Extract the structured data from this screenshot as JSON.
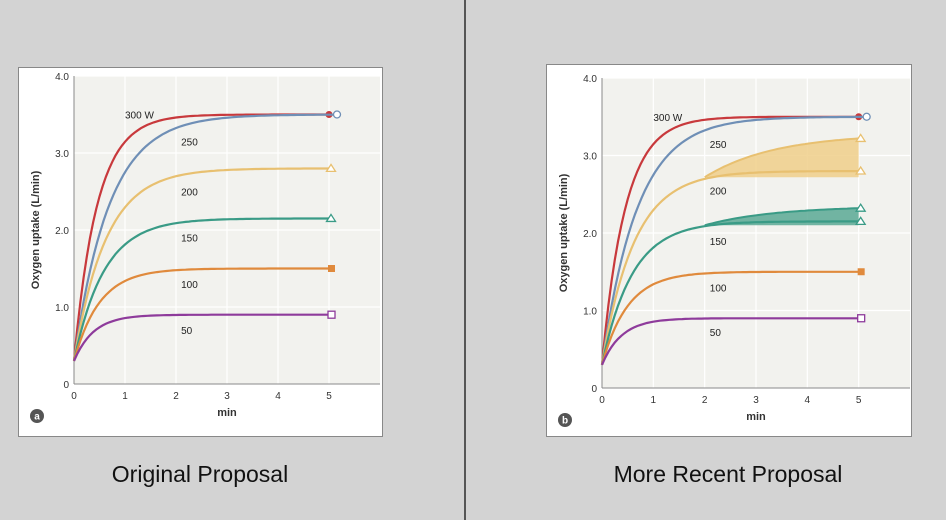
{
  "colors": {
    "background": "#d3d3d3",
    "plot_bg": "#f2f2ee",
    "grid": "#ffffff",
    "red": "#c8393c",
    "blue": "#6f8fb6",
    "yellow": "#e8c070",
    "teal": "#3a9b86",
    "orange": "#e08a3c",
    "purple": "#8e3b9b",
    "fill_yellow": "#f0cf8a",
    "fill_teal": "#5aa994"
  },
  "captions": {
    "left": "Original Proposal",
    "right": "More Recent Proposal"
  },
  "chart_data": [
    {
      "type": "line",
      "panel_badge": "a",
      "title": "",
      "xlabel": "min",
      "ylabel": "Oxygen uptake (L/min)",
      "xlim": [
        0,
        6
      ],
      "ylim": [
        0,
        4
      ],
      "x_ticks": [
        "0",
        "1",
        "2",
        "3",
        "4",
        "5"
      ],
      "y_ticks": [
        "0",
        "1.0",
        "2.0",
        "3.0",
        "4.0"
      ],
      "y_tick_values": [
        0,
        1,
        2,
        3,
        4
      ],
      "series": [
        {
          "name": "300 W",
          "color_key": "red",
          "start": 0.3,
          "steady": 3.5,
          "rate": 2.2,
          "end_x": 5,
          "marker": "circle-filled",
          "label_x": 1.0,
          "label_y": 3.5
        },
        {
          "name": "250",
          "color_key": "blue",
          "start": 0.3,
          "steady": 3.5,
          "rate": 1.45,
          "end_x": 5.15,
          "marker": "circle-open",
          "label_x": 2.1,
          "label_y": 3.15
        },
        {
          "name": "200",
          "color_key": "yellow",
          "start": 0.3,
          "steady": 2.8,
          "rate": 1.6,
          "end_x": 5,
          "marker": "triangle-open",
          "label_x": 2.1,
          "label_y": 2.5
        },
        {
          "name": "150",
          "color_key": "teal",
          "start": 0.3,
          "steady": 2.15,
          "rate": 1.7,
          "end_x": 5,
          "marker": "triangle-open",
          "label_x": 2.1,
          "label_y": 1.9
        },
        {
          "name": "100",
          "color_key": "orange",
          "start": 0.3,
          "steady": 1.5,
          "rate": 2.0,
          "end_x": 5,
          "marker": "square-filled",
          "label_x": 2.1,
          "label_y": 1.3
        },
        {
          "name": "50",
          "color_key": "purple",
          "start": 0.3,
          "steady": 0.9,
          "rate": 2.6,
          "end_x": 5,
          "marker": "square-open",
          "label_x": 2.1,
          "label_y": 0.7
        }
      ],
      "bands": []
    },
    {
      "type": "line",
      "panel_badge": "b",
      "title": "",
      "xlabel": "min",
      "ylabel": "Oxygen uptake (L/min)",
      "xlim": [
        0,
        6
      ],
      "ylim": [
        0,
        4
      ],
      "x_ticks": [
        "0",
        "1",
        "2",
        "3",
        "4",
        "5"
      ],
      "y_ticks": [
        "0",
        "1.0",
        "2.0",
        "3.0",
        "4.0"
      ],
      "y_tick_values": [
        0,
        1,
        2,
        3,
        4
      ],
      "series": [
        {
          "name": "300 W",
          "color_key": "red",
          "start": 0.3,
          "steady": 3.5,
          "rate": 2.2,
          "end_x": 5,
          "marker": "circle-filled",
          "label_x": 1.0,
          "label_y": 3.5
        },
        {
          "name": "250",
          "color_key": "blue",
          "start": 0.3,
          "steady": 3.5,
          "rate": 1.45,
          "end_x": 5.15,
          "marker": "circle-open",
          "label_x": 2.1,
          "label_y": 3.15
        },
        {
          "name": "200",
          "color_key": "yellow",
          "start": 0.3,
          "steady": 2.8,
          "rate": 1.6,
          "end_x": 5,
          "marker": "triangle-open",
          "label_x": 2.1,
          "label_y": 2.55
        },
        {
          "name": "150",
          "color_key": "teal",
          "start": 0.3,
          "steady": 2.15,
          "rate": 1.7,
          "end_x": 5,
          "marker": "triangle-open",
          "label_x": 2.1,
          "label_y": 1.9
        },
        {
          "name": "100",
          "color_key": "orange",
          "start": 0.3,
          "steady": 1.5,
          "rate": 2.0,
          "end_x": 5,
          "marker": "square-filled",
          "label_x": 2.1,
          "label_y": 1.3
        },
        {
          "name": "50",
          "color_key": "purple",
          "start": 0.3,
          "steady": 0.9,
          "rate": 2.6,
          "end_x": 5,
          "marker": "square-open",
          "label_x": 2.1,
          "label_y": 0.72
        }
      ],
      "bands": [
        {
          "name": "slow-component-200",
          "color_key": "yellow",
          "fill_key": "fill_yellow",
          "from_x": 2,
          "to_x": 5,
          "start": 2.72,
          "end": 3.22
        },
        {
          "name": "slow-component-150",
          "color_key": "teal",
          "fill_key": "fill_teal",
          "from_x": 2,
          "to_x": 5,
          "start": 2.1,
          "end": 2.32
        }
      ]
    }
  ]
}
